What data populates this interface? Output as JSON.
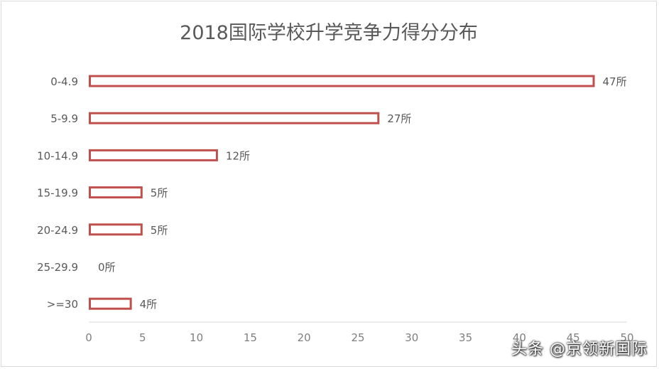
{
  "chart_data": {
    "type": "bar",
    "orientation": "horizontal",
    "title": "2018国际学校升学竞争力得分分布",
    "categories": [
      "0-4.9",
      "5-9.9",
      "10-14.9",
      "15-19.9",
      "20-24.9",
      "25-29.9",
      ">=30"
    ],
    "values": [
      47,
      27,
      12,
      5,
      5,
      0,
      4
    ],
    "data_labels": [
      "47所",
      "27所",
      "12所",
      "5所",
      "5所",
      "0所",
      "4所"
    ],
    "xlim": [
      0,
      50
    ],
    "x_ticks": [
      "0",
      "5",
      "10",
      "15",
      "20",
      "25",
      "30",
      "35",
      "40",
      "45",
      "50"
    ],
    "grid": false,
    "legend": "none",
    "bar_color": "#c0504d"
  },
  "watermark": "头条 @京领新国际"
}
